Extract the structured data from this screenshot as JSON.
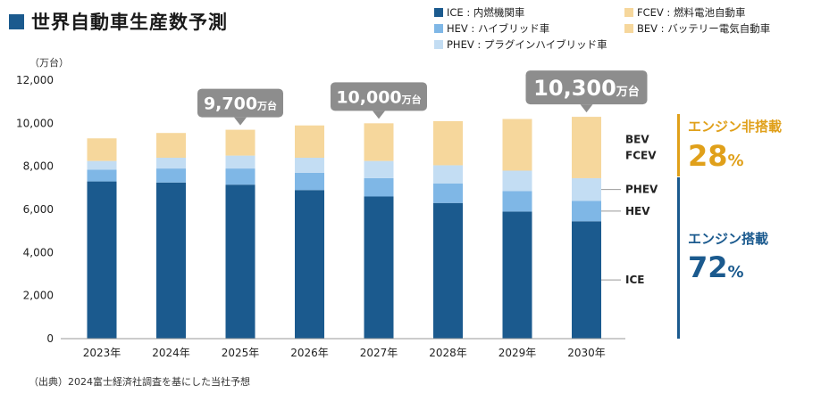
{
  "title": "世界自動車生産数予測",
  "unit_label": "（万台）",
  "source_note": "（出典）2024富士経済社調査を基にした当社予想",
  "colors": {
    "ICE": "#1b5a8e",
    "HEV": "#7fb7e6",
    "PHEV": "#c3ddf3",
    "FCEV": "#f6d79c",
    "BEV": "#f6d79c",
    "callout": "#8d8d8d",
    "axis": "#999999",
    "engine_off": "#e0a01a",
    "engine_on": "#1b5a8e"
  },
  "legend": [
    {
      "key": "ICE",
      "text": "ICE : 内燃機関車"
    },
    {
      "key": "FCEV",
      "text": "FCEV : 燃料電池自動車"
    },
    {
      "key": "HEV",
      "text": "HEV : ハイブリッド車"
    },
    {
      "key": "BEV",
      "text": "BEV : バッテリー電気自動車"
    },
    {
      "key": "PHEV",
      "text": "PHEV : プラグインハイブリッド車"
    }
  ],
  "chart_data": {
    "type": "bar",
    "stacked": true,
    "categories": [
      "2023年",
      "2024年",
      "2025年",
      "2026年",
      "2027年",
      "2028年",
      "2029年",
      "2030年"
    ],
    "series": [
      {
        "name": "ICE",
        "values": [
          7300,
          7250,
          7150,
          6900,
          6600,
          6300,
          5900,
          5450
        ]
      },
      {
        "name": "HEV",
        "values": [
          550,
          650,
          750,
          800,
          850,
          900,
          950,
          950
        ]
      },
      {
        "name": "PHEV",
        "values": [
          400,
          500,
          600,
          700,
          800,
          850,
          950,
          1050
        ]
      },
      {
        "name": "FCEV/BEV",
        "values": [
          1050,
          1150,
          1200,
          1500,
          1750,
          2050,
          2400,
          2850
        ]
      }
    ],
    "ylim": [
      0,
      12000
    ],
    "yticks": [
      "0",
      "2,000",
      "4,000",
      "6,000",
      "8,000",
      "10,000",
      "12,000"
    ],
    "grid": false,
    "legend_position": "top-right",
    "callouts": [
      {
        "category_index": 2,
        "value_text": "9,700",
        "unit_text": "万台",
        "size": "small"
      },
      {
        "category_index": 4,
        "value_text": "10,000",
        "unit_text": "万台",
        "size": "small"
      },
      {
        "category_index": 7,
        "value_text": "10,300",
        "unit_text": "万台",
        "size": "large"
      }
    ],
    "segment_labels": [
      "BEV",
      "FCEV",
      "PHEV",
      "HEV",
      "ICE"
    ]
  },
  "shares": {
    "engine_off": {
      "label": "エンジン非搭載",
      "value": "28",
      "unit": "%"
    },
    "engine_on": {
      "label": "エンジン搭載",
      "value": "72",
      "unit": "%"
    }
  }
}
